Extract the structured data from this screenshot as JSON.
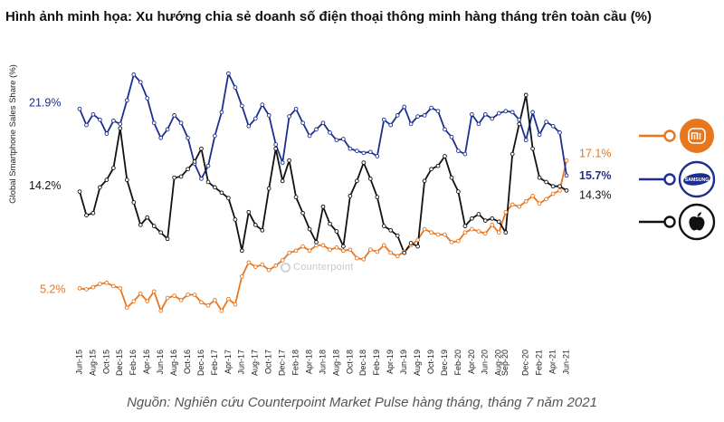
{
  "title": "Hình ảnh minh họa: Xu hướng chia sẻ doanh số điện thoại thông minh hàng tháng trên toàn cầu (%)",
  "source": "Nguồn: Nghiên cứu Counterpoint Market Pulse hàng tháng, tháng 7 năm 2021",
  "watermark": "Counterpoint",
  "legend": [
    {
      "brand": "Xiaomi",
      "icon": "mi-logo-icon",
      "color": "#e8761f",
      "symbol": "mi"
    },
    {
      "brand": "Samsung",
      "icon": "samsung-logo-icon",
      "color": "#1c2f8f",
      "symbol": "SAMSUNG"
    },
    {
      "brand": "Apple",
      "icon": "apple-logo-icon",
      "color": "#111111",
      "symbol": "apple"
    }
  ],
  "chart_data": {
    "type": "line",
    "ylabel": "Global Smartphone Sales Share (%)",
    "ylim": [
      0,
      28
    ],
    "x": [
      "Jun-15",
      "Jul-15",
      "Aug-15",
      "Sep-15",
      "Oct-15",
      "Nov-15",
      "Dec-15",
      "Jan-16",
      "Feb-16",
      "Mar-16",
      "Apr-16",
      "May-16",
      "Jun-16",
      "Jul-16",
      "Aug-16",
      "Sep-16",
      "Oct-16",
      "Nov-16",
      "Dec-16",
      "Jan-17",
      "Feb-17",
      "Mar-17",
      "Apr-17",
      "May-17",
      "Jun-17",
      "Jul-17",
      "Aug-17",
      "Sep-17",
      "Oct-17",
      "Nov-17",
      "Dec-17",
      "Jan-18",
      "Feb-18",
      "Mar-18",
      "Apr-18",
      "May-18",
      "Jun-18",
      "Jul-18",
      "Aug-18",
      "Sep-18",
      "Oct-18",
      "Nov-18",
      "Dec-18",
      "Jan-19",
      "Feb-19",
      "Mar-19",
      "Apr-19",
      "May-19",
      "Jun-19",
      "Jul-19",
      "Aug-19",
      "Sep-19",
      "Oct-19",
      "Nov-19",
      "Dec-19",
      "Jan-20",
      "Feb-20",
      "Mar-20",
      "Apr-20",
      "May-20",
      "Jun-20",
      "Jul-20",
      "Aug-20",
      "Sep-20",
      "Oct-20",
      "Nov-20",
      "Dec-20",
      "Jan-21",
      "Feb-21",
      "Mar-21",
      "Apr-21",
      "May-21",
      "Jun-21"
    ],
    "x_tick_labels": [
      "Jun-15",
      "Aug-15",
      "Oct-15",
      "Dec-15",
      "Feb-16",
      "Apr-16",
      "Jun-16",
      "Aug-16",
      "Oct-16",
      "Dec-16",
      "Feb-17",
      "Apr-17",
      "Jun-17",
      "Aug-17",
      "Oct-17",
      "Dec-17",
      "Feb-18",
      "Apr-18",
      "Jun-18",
      "Aug-18",
      "Oct-18",
      "Dec-18",
      "Feb-19",
      "Apr-19",
      "Jun-19",
      "Aug-19",
      "Oct-19",
      "Dec-19",
      "Feb-20",
      "Apr-20",
      "Jun-20",
      "Aug-20",
      "Sep-20",
      "Dec-20",
      "Feb-21",
      "Apr-21",
      "Jun-21"
    ],
    "series": [
      {
        "name": "Samsung",
        "color": "#1c2f8f",
        "start_label": "21.9%",
        "end_label": "15.7%",
        "values": [
          21.9,
          20.4,
          21.4,
          20.9,
          19.6,
          20.8,
          20.5,
          22.7,
          25.1,
          24.4,
          22.9,
          20.6,
          19.2,
          20.0,
          21.3,
          20.6,
          19.2,
          16.8,
          15.4,
          16.6,
          19.4,
          21.6,
          25.2,
          23.9,
          22.2,
          20.3,
          21.0,
          22.3,
          21.3,
          18.6,
          16.9,
          21.2,
          21.9,
          20.6,
          19.4,
          20.0,
          20.6,
          19.7,
          19.0,
          19.1,
          18.2,
          18.0,
          17.8,
          17.9,
          17.5,
          20.9,
          20.4,
          21.3,
          22.1,
          20.5,
          21.2,
          21.3,
          22.0,
          21.7,
          20.0,
          19.3,
          18.0,
          17.7,
          21.4,
          20.5,
          21.4,
          21.0,
          21.5,
          21.7,
          21.6,
          20.9,
          19.0,
          21.6,
          19.5,
          20.7,
          20.3,
          19.7,
          15.7
        ]
      },
      {
        "name": "Xiaomi",
        "color": "#e8761f",
        "start_label": "5.2%",
        "end_label": "17.1%",
        "values": [
          5.2,
          5.1,
          5.3,
          5.6,
          5.7,
          5.4,
          5.2,
          3.4,
          4.0,
          4.7,
          4.0,
          4.9,
          3.1,
          4.3,
          4.5,
          4.1,
          4.6,
          4.6,
          3.9,
          3.6,
          4.1,
          3.1,
          4.2,
          3.7,
          6.3,
          7.6,
          7.2,
          7.4,
          6.9,
          7.3,
          7.8,
          8.5,
          8.7,
          9.1,
          8.7,
          9.2,
          9.2,
          8.8,
          9.0,
          8.7,
          8.8,
          8.0,
          7.9,
          8.8,
          8.6,
          9.2,
          8.5,
          8.2,
          8.6,
          9.2,
          9.7,
          10.7,
          10.4,
          10.2,
          10.2,
          9.5,
          9.6,
          10.4,
          10.7,
          10.5,
          10.3,
          11.1,
          10.4,
          12.3,
          13.0,
          12.8,
          13.3,
          13.8,
          13.1,
          13.5,
          14.0,
          14.3,
          17.1
        ]
      },
      {
        "name": "Apple",
        "color": "#111111",
        "start_label": "14.2%",
        "end_label": "14.3%",
        "values": [
          14.2,
          12.0,
          12.2,
          14.6,
          15.3,
          16.4,
          20.1,
          15.3,
          13.2,
          11.1,
          11.8,
          11.0,
          10.4,
          9.8,
          15.5,
          15.6,
          16.3,
          17.0,
          18.2,
          15.1,
          14.6,
          14.1,
          13.6,
          11.6,
          8.7,
          12.3,
          11.1,
          10.6,
          14.5,
          18.2,
          15.2,
          17.1,
          13.7,
          12.2,
          10.7,
          9.5,
          12.8,
          11.2,
          10.5,
          9.1,
          13.8,
          15.2,
          16.9,
          15.4,
          13.7,
          11.0,
          10.6,
          10.1,
          8.5,
          9.4,
          9.1,
          15.2,
          16.3,
          16.6,
          17.5,
          15.5,
          14.2,
          11.0,
          11.7,
          12.1,
          11.5,
          11.7,
          11.4,
          10.4,
          17.7,
          20.5,
          23.2,
          18.2,
          15.5,
          15.1,
          14.7,
          14.7,
          14.3
        ]
      }
    ]
  }
}
